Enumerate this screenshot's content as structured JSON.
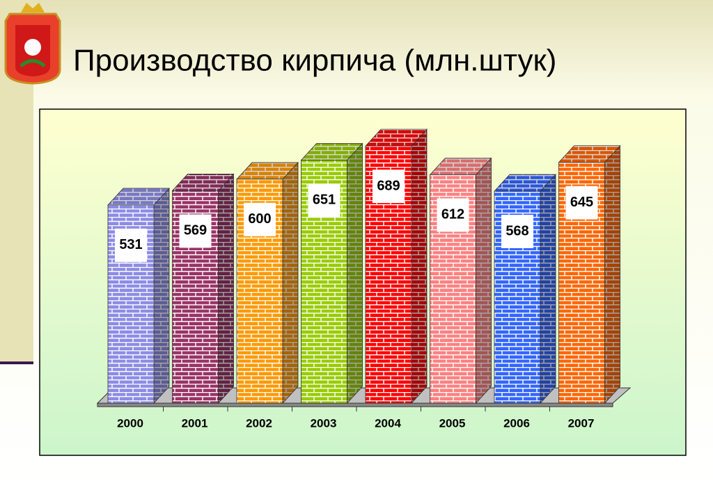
{
  "chart_data": {
    "type": "bar",
    "title": "Производство кирпича (млн.штук)",
    "categories": [
      "2000",
      "2001",
      "2002",
      "2003",
      "2004",
      "2005",
      "2006",
      "2007"
    ],
    "values": [
      531,
      569,
      600,
      651,
      689,
      612,
      568,
      645
    ],
    "colors": [
      "#8c8ce6",
      "#993366",
      "#ff9900",
      "#99cc00",
      "#ff0000",
      "#ff8080",
      "#3366ff",
      "#ff6600"
    ]
  }
}
